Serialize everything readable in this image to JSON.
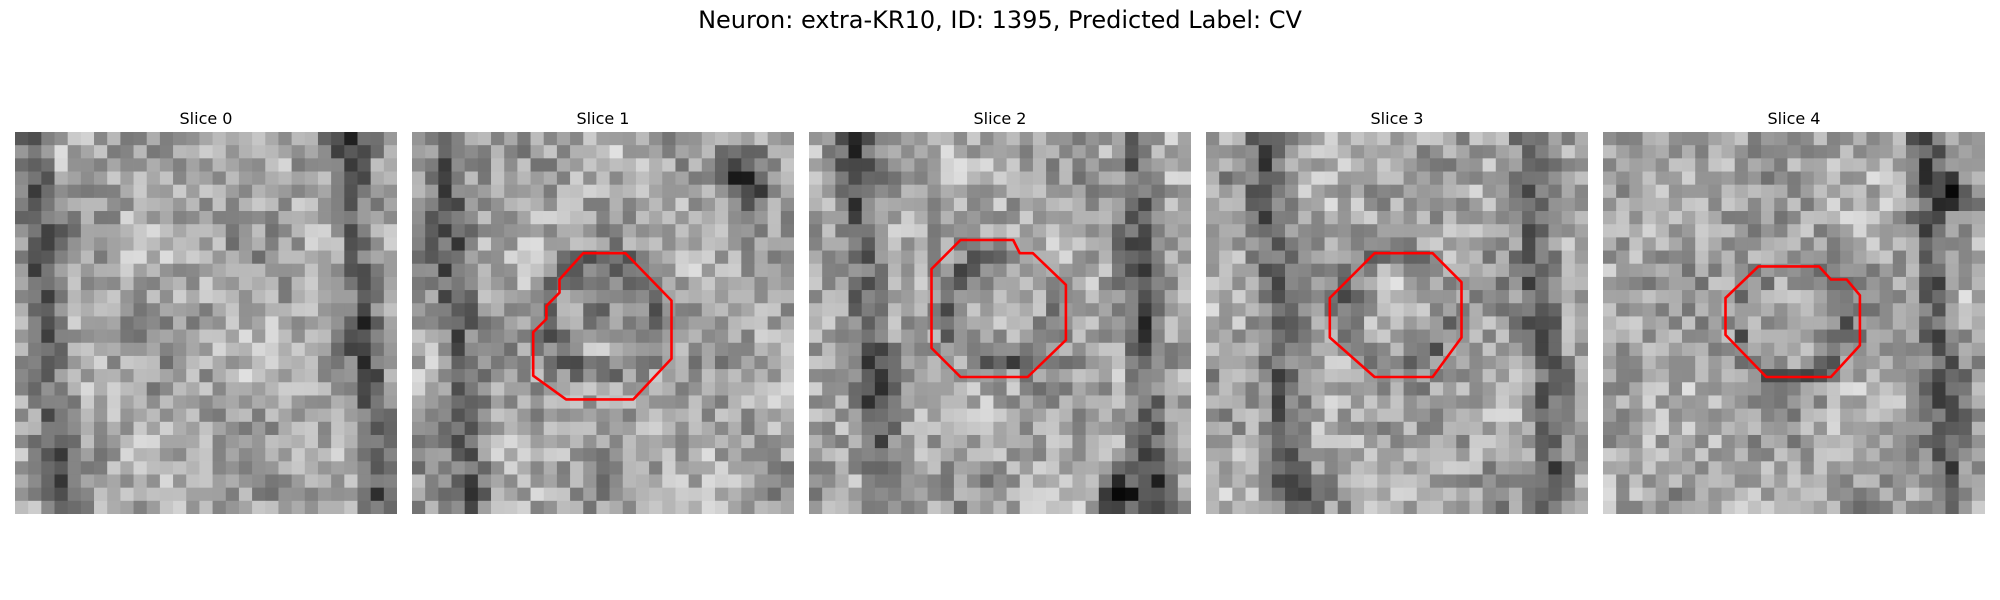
{
  "title": "Neuron: extra-KR10, ID: 1395, Predicted Label: CV",
  "colors": {
    "contour": "#ff0000",
    "background": "#ffffff"
  },
  "panels": [
    {
      "title": "Slice 0",
      "seed": 11,
      "has_contour": false
    },
    {
      "title": "Slice 1",
      "seed": 23,
      "has_contour": true
    },
    {
      "title": "Slice 2",
      "seed": 37,
      "has_contour": true
    },
    {
      "title": "Slice 3",
      "seed": 41,
      "has_contour": true
    },
    {
      "title": "Slice 4",
      "seed": 53,
      "has_contour": true
    }
  ]
}
